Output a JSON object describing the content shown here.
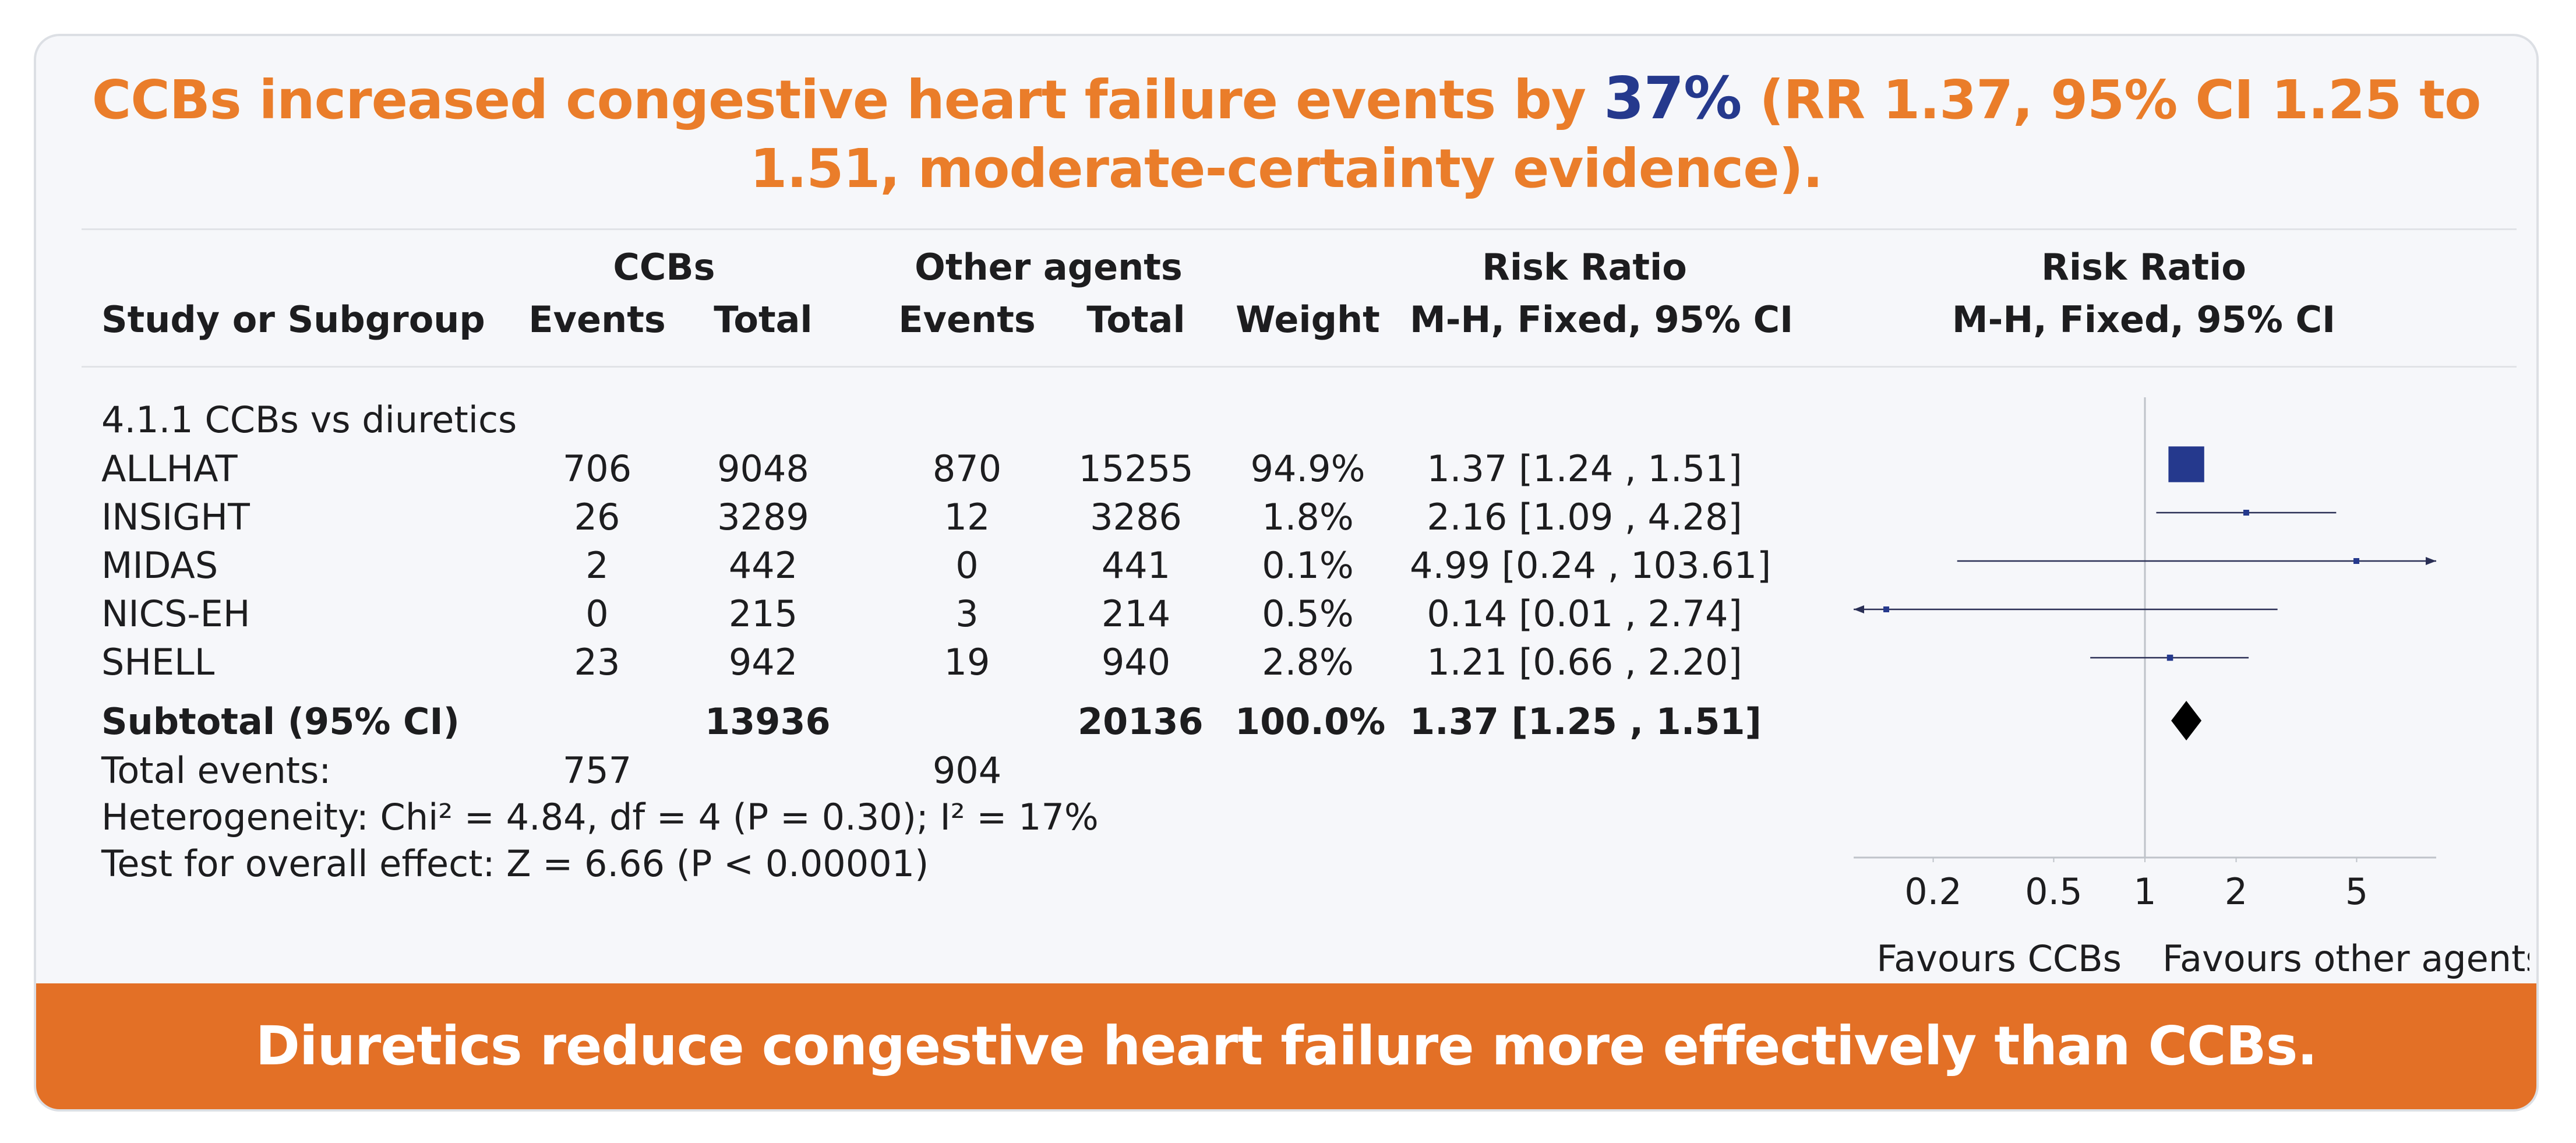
{
  "headline": {
    "before": "CCBs increased congestive heart failure events by ",
    "highlight": "37%",
    "after": " (RR 1.37, 95% CI 1.25 to 1.51, moderate-certainty evidence)."
  },
  "table": {
    "group_ccb": "CCBs",
    "group_other": "Other agents",
    "rr_header_1": "Risk Ratio",
    "rr_header_2": "M-H, Fixed, 95% CI",
    "col_study": "Study or Subgroup",
    "col_events": "Events",
    "col_total": "Total",
    "col_weight": "Weight",
    "subgroup_label": "4.1.1 CCBs vs diuretics",
    "rows": [
      {
        "study": "ALLHAT",
        "ccb_events": "706",
        "ccb_total": "9048",
        "other_events": "870",
        "other_total": "15255",
        "weight": "94.9%",
        "ci": "1.37 [1.24 , 1.51]"
      },
      {
        "study": "INSIGHT",
        "ccb_events": "26",
        "ccb_total": "3289",
        "other_events": "12",
        "other_total": "3286",
        "weight": "1.8%",
        "ci": "2.16 [1.09 , 4.28]"
      },
      {
        "study": "MIDAS",
        "ccb_events": "2",
        "ccb_total": "442",
        "other_events": "0",
        "other_total": "441",
        "weight": "0.1%",
        "ci": "4.99 [0.24 , 103.61]"
      },
      {
        "study": "NICS-EH",
        "ccb_events": "0",
        "ccb_total": "215",
        "other_events": "3",
        "other_total": "214",
        "weight": "0.5%",
        "ci": "0.14 [0.01 , 2.74]"
      },
      {
        "study": "SHELL",
        "ccb_events": "23",
        "ccb_total": "942",
        "other_events": "19",
        "other_total": "940",
        "weight": "2.8%",
        "ci": "1.21 [0.66 , 2.20]"
      }
    ],
    "subtotal": {
      "label": "Subtotal (95% CI)",
      "ccb_total": "13936",
      "other_total": "20136",
      "weight": "100.0%",
      "ci": "1.37 [1.25 , 1.51]"
    },
    "total_events": {
      "label": "Total events:",
      "ccb": "757",
      "other": "904"
    },
    "heterogeneity": "Heterogeneity: Chi² = 4.84, df = 4 (P = 0.30); I² = 17%",
    "overall_effect": "Test for overall effect: Z = 6.66 (P < 0.00001)"
  },
  "chart_data": {
    "type": "forest",
    "title": "Risk Ratio",
    "subtitle": "M-H, Fixed, 95% CI",
    "scale": "log",
    "xlim": [
      0.1,
      10
    ],
    "ticks": [
      0.2,
      0.5,
      1,
      2,
      5
    ],
    "tick_labels": [
      "0.2",
      "0.5",
      "1",
      "2",
      "5"
    ],
    "left_label": "Favours CCBs",
    "right_label": "Favours other agents",
    "studies": [
      {
        "name": "ALLHAT",
        "rr": 1.37,
        "lower": 1.24,
        "upper": 1.51,
        "weight": 94.9
      },
      {
        "name": "INSIGHT",
        "rr": 2.16,
        "lower": 1.09,
        "upper": 4.28,
        "weight": 1.8
      },
      {
        "name": "MIDAS",
        "rr": 4.99,
        "lower": 0.24,
        "upper": 103.61,
        "weight": 0.1
      },
      {
        "name": "NICS-EH",
        "rr": 0.14,
        "lower": 0.01,
        "upper": 2.74,
        "weight": 0.5
      },
      {
        "name": "SHELL",
        "rr": 1.21,
        "lower": 0.66,
        "upper": 2.2,
        "weight": 2.8
      }
    ],
    "pooled": {
      "rr": 1.37,
      "lower": 1.25,
      "upper": 1.51
    },
    "colors": {
      "marker": "#25398d",
      "line": "#2a2f55",
      "diamond": "#000000",
      "axis": "#bfc3c9"
    }
  },
  "footer": {
    "text": "Diuretics reduce congestive heart failure more effectively than CCBs."
  },
  "colors": {
    "accent": "#ea7d2a",
    "highlight": "#25398d",
    "footer_bg": "#e37026"
  }
}
